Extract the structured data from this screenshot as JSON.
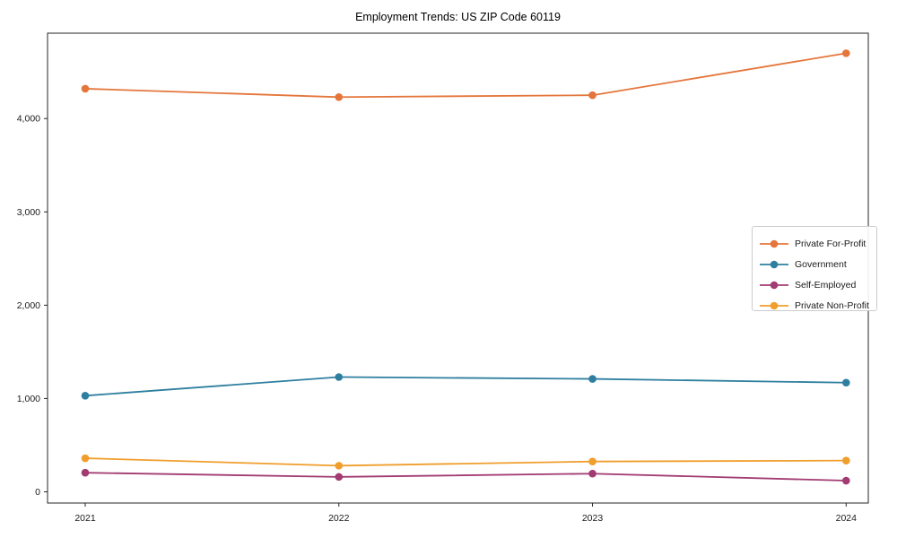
{
  "chart_data": {
    "type": "line",
    "title": "Employment Trends: US ZIP Code 60119",
    "categories": [
      "2021",
      "2022",
      "2023",
      "2024"
    ],
    "series": [
      {
        "name": "Private For-Profit",
        "color": "#e4763b",
        "values": [
          4320,
          4230,
          4250,
          4700
        ]
      },
      {
        "name": "Government",
        "color": "#2e7f9f",
        "values": [
          1030,
          1230,
          1210,
          1170
        ]
      },
      {
        "name": "Self-Employed",
        "color": "#a23b72",
        "values": [
          205,
          160,
          195,
          120
        ]
      },
      {
        "name": "Private Non-Profit",
        "color": "#f09e2c",
        "values": [
          360,
          280,
          325,
          335
        ]
      }
    ],
    "yticks": [
      0,
      1000,
      2000,
      3000,
      4000
    ],
    "ytick_labels": [
      "0",
      "1,000",
      "2,000",
      "3,000",
      "4,000"
    ],
    "ylim": [
      -120,
      4915
    ],
    "xlabel": "",
    "ylabel": "",
    "grid": false,
    "legend_position": "right",
    "axis_color": "#262626",
    "tick_label_color": "#1a1a1a"
  }
}
